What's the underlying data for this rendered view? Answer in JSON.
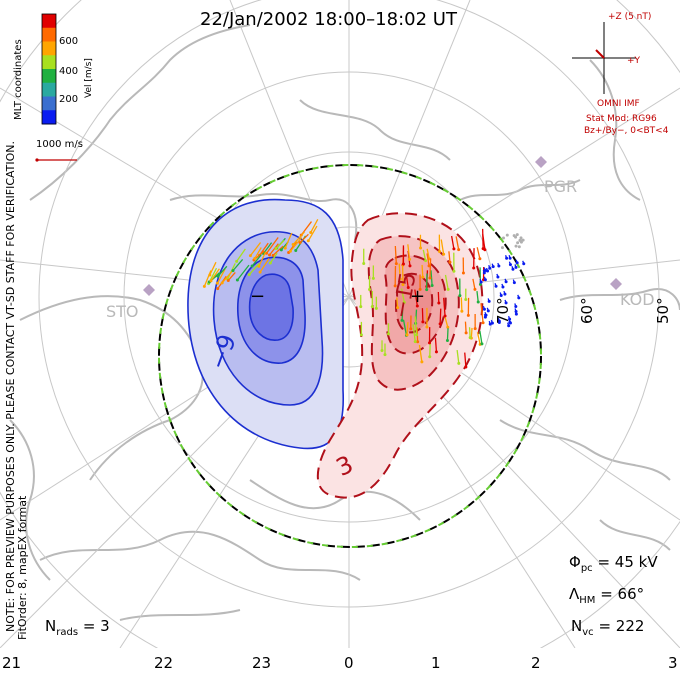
{
  "title": "22/Jan/2002 18:00–18:02 UT",
  "colorbar": {
    "tick_labels": [
      "600",
      "400",
      "200"
    ],
    "units_label": "Vel [m/s]",
    "colors": [
      "#e00000",
      "#ff6a00",
      "#ffa500",
      "#a8e020",
      "#20b040",
      "#2aa9a0",
      "#3a6fcf",
      "#0a1cf0"
    ]
  },
  "side_label": "MLT coordinates",
  "scale_vector_label": "1000 m/s",
  "imf": {
    "z_label": "+Z (5 nT)",
    "y_label": "+Y",
    "source": "OMNI IMF",
    "stat_mod": "Stat Mod: RG96",
    "condition": "Bz+/By−, 0<BT<4"
  },
  "stations": [
    "PGR",
    "STO",
    "KOD"
  ],
  "lat_labels": [
    "70°",
    "60°",
    "50°"
  ],
  "contour_labels": [
    "−9",
    "−15",
    "3"
  ],
  "extreme_marks": [
    "−",
    "+"
  ],
  "note": "NOTE: FOR PREVIEW PURPOSES ONLY. PLEASE CONTACT VT-SD STAFF FOR VERIFICATION.",
  "fit_order": "FitOrder: 8, mapEX format",
  "stats": {
    "phi_pc_label": "Φ",
    "phi_pc_sub": "pc",
    "phi_pc_value": "= 45 kV",
    "lambda_hm_label": "Λ",
    "lambda_hm_sub": "HM",
    "lambda_hm_value": "= 66°",
    "n_vc_label": "N",
    "n_vc_sub": "vc",
    "n_vc_value": "= 222",
    "n_rads_label": "N",
    "n_rads_sub": "rads",
    "n_rads_value": "= 3"
  },
  "mlt_ticks": [
    "21",
    "22",
    "23",
    "0",
    "1",
    "2",
    "3"
  ],
  "colors": {
    "negative_cell": "#5a64e0",
    "positive_cell": "#f08080",
    "land": "#b9b9b9",
    "grid": "#c8c8c8",
    "boundary_dash": "#66cc33",
    "imf_text": "#c00000"
  }
}
